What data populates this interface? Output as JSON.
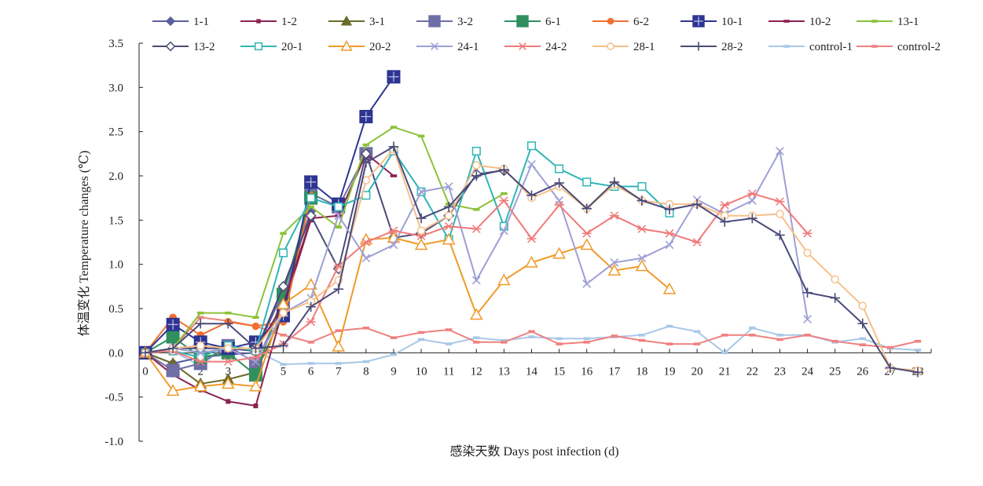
{
  "chart_data": {
    "type": "line",
    "title": "",
    "xlabel": "感染天数 Days post infection (d)",
    "ylabel": "体温变化 Temperature changes (℃)",
    "xlim": [
      0,
      28
    ],
    "ylim": [
      -1.0,
      3.5
    ],
    "yticks": [
      "-1.0",
      "-0.5",
      "0.0",
      "0.5",
      "1.0",
      "1.5",
      "2.0",
      "2.5",
      "3.0",
      "3.5"
    ],
    "xticks": [
      "0",
      "1",
      "2",
      "3",
      "4",
      "5",
      "6",
      "7",
      "8",
      "9",
      "10",
      "11",
      "12",
      "13",
      "14",
      "15",
      "16",
      "17",
      "18",
      "19",
      "20",
      "21",
      "22",
      "23",
      "24",
      "25",
      "26",
      "27",
      "28"
    ],
    "grid": false,
    "legend_position": "top",
    "series": [
      {
        "name": "1-1",
        "color": "#5a5f9c",
        "marker": "diamond",
        "x": [
          0,
          1,
          2,
          3,
          4,
          5,
          6
        ],
        "y": [
          0,
          -0.12,
          -0.05,
          -0.02,
          0.0,
          0.7,
          1.6
        ]
      },
      {
        "name": "1-2",
        "color": "#8b2252",
        "marker": "square-small",
        "x": [
          0,
          1,
          2,
          3,
          4,
          5,
          6
        ],
        "y": [
          0,
          -0.25,
          -0.42,
          -0.55,
          -0.6,
          0.5,
          1.5
        ]
      },
      {
        "name": "3-1",
        "color": "#6b6b2a",
        "marker": "triangle-filled",
        "x": [
          0,
          1,
          2,
          3,
          4,
          5,
          6
        ],
        "y": [
          0,
          -0.12,
          -0.35,
          -0.3,
          -0.22,
          0.45,
          1.78
        ]
      },
      {
        "name": "3-2",
        "color": "#6f6fa6",
        "marker": "square-large",
        "x": [
          0,
          1,
          2,
          3,
          4,
          5,
          6,
          7,
          8
        ],
        "y": [
          0,
          -0.2,
          -0.12,
          0.08,
          -0.12,
          0.55,
          1.8,
          1.65,
          2.25
        ]
      },
      {
        "name": "6-1",
        "color": "#2f8f5f",
        "marker": "square-large",
        "x": [
          0,
          1,
          2,
          3,
          4,
          5,
          6
        ],
        "y": [
          0,
          0.18,
          -0.05,
          0.0,
          -0.25,
          0.66,
          1.75
        ]
      },
      {
        "name": "6-2",
        "color": "#f07030",
        "marker": "circle-filled",
        "x": [
          0,
          1,
          2,
          3,
          4,
          5,
          6
        ],
        "y": [
          0,
          0.4,
          0.2,
          0.35,
          0.3,
          0.35,
          1.78
        ]
      },
      {
        "name": "10-1",
        "color": "#2d3592",
        "marker": "square-plus",
        "x": [
          0,
          1,
          2,
          3,
          4,
          5,
          6,
          7,
          8,
          9
        ],
        "y": [
          0,
          0.32,
          0.12,
          0.05,
          0.12,
          0.42,
          1.93,
          1.68,
          2.67,
          3.12
        ]
      },
      {
        "name": "10-2",
        "color": "#8b2252",
        "marker": "dash",
        "x": [
          0,
          1,
          2,
          3,
          4,
          5,
          6,
          7,
          8,
          9
        ],
        "y": [
          0,
          0.05,
          0.08,
          0.05,
          0.02,
          0.55,
          1.52,
          1.55,
          2.25,
          2.0
        ]
      },
      {
        "name": "13-1",
        "color": "#8cc23a",
        "marker": "dash",
        "x": [
          0,
          1,
          2,
          3,
          4,
          5,
          6,
          7,
          8,
          9,
          10,
          11,
          12,
          13
        ],
        "y": [
          0,
          0.05,
          0.45,
          0.45,
          0.4,
          1.35,
          1.65,
          1.42,
          2.35,
          2.55,
          2.45,
          1.68,
          1.62,
          1.8
        ]
      },
      {
        "name": "13-2",
        "color": "#4a4a7a",
        "marker": "diamond-open",
        "x": [
          0,
          1,
          2,
          3,
          4,
          5,
          6,
          7,
          8,
          9,
          10,
          11,
          12,
          13
        ],
        "y": [
          0,
          0.05,
          0.05,
          0.05,
          0.02,
          0.75,
          1.55,
          0.95,
          2.25,
          1.3,
          1.35,
          1.55,
          2.02,
          2.06
        ]
      },
      {
        "name": "20-1",
        "color": "#30b5b5",
        "marker": "square-open",
        "x": [
          0,
          1,
          2,
          3,
          4,
          5,
          6,
          7,
          8,
          9,
          10,
          11,
          12,
          13,
          14,
          15,
          16,
          17,
          18,
          19
        ],
        "y": [
          0,
          0.02,
          -0.05,
          0.08,
          0.02,
          1.13,
          1.75,
          1.65,
          1.78,
          2.28,
          1.82,
          1.28,
          2.28,
          1.43,
          2.34,
          2.08,
          1.93,
          1.88,
          1.88,
          1.58
        ]
      },
      {
        "name": "20-2",
        "color": "#f09a2a",
        "marker": "triangle-open",
        "x": [
          0,
          1,
          2,
          3,
          4,
          5,
          6,
          7,
          8,
          9,
          10,
          11,
          12,
          13,
          14,
          15,
          16,
          17,
          18,
          19
        ],
        "y": [
          0,
          -0.43,
          -0.38,
          -0.35,
          -0.38,
          0.55,
          0.77,
          0.07,
          1.28,
          1.3,
          1.22,
          1.28,
          0.43,
          0.82,
          1.02,
          1.12,
          1.22,
          0.93,
          0.98,
          0.72
        ]
      },
      {
        "name": "24-1",
        "color": "#9f9fd6",
        "marker": "x",
        "x": [
          0,
          1,
          2,
          3,
          4,
          5,
          6,
          7,
          8,
          9,
          10,
          11,
          12,
          13,
          14,
          15,
          16,
          17,
          18,
          19,
          20,
          21,
          22,
          23,
          24
        ],
        "y": [
          0,
          0.05,
          0.0,
          0.05,
          -0.1,
          0.45,
          0.62,
          1.55,
          1.07,
          1.22,
          1.82,
          1.88,
          0.82,
          1.38,
          2.13,
          1.72,
          0.78,
          1.02,
          1.07,
          1.22,
          1.73,
          1.57,
          1.72,
          2.28,
          0.38
        ]
      },
      {
        "name": "24-2",
        "color": "#f07a7a",
        "marker": "asterisk",
        "x": [
          0,
          1,
          2,
          3,
          4,
          5,
          6,
          7,
          8,
          9,
          10,
          11,
          12,
          13,
          14,
          15,
          16,
          17,
          18,
          19,
          20,
          21,
          22,
          23,
          24
        ],
        "y": [
          0,
          0.02,
          -0.1,
          -0.1,
          -0.05,
          0.1,
          0.35,
          0.98,
          1.25,
          1.38,
          1.32,
          1.43,
          1.4,
          1.72,
          1.29,
          1.67,
          1.35,
          1.55,
          1.4,
          1.35,
          1.25,
          1.67,
          1.8,
          1.71,
          1.35
        ]
      },
      {
        "name": "28-1",
        "color": "#f5c08a",
        "marker": "circle-open",
        "x": [
          0,
          1,
          2,
          3,
          4,
          5,
          6,
          7,
          8,
          9,
          10,
          11,
          12,
          13,
          14,
          15,
          16,
          17,
          18,
          19,
          20,
          21,
          22,
          23,
          24,
          25,
          26,
          27,
          28
        ],
        "y": [
          0,
          0.05,
          0.08,
          0.05,
          0.05,
          0.45,
          0.58,
          0.82,
          1.95,
          2.3,
          1.38,
          1.55,
          2.12,
          2.08,
          1.75,
          1.88,
          1.63,
          1.9,
          1.72,
          1.68,
          1.68,
          1.55,
          1.55,
          1.57,
          1.13,
          0.83,
          0.53,
          -0.17,
          -0.2
        ]
      },
      {
        "name": "28-2",
        "color": "#4a4a7a",
        "marker": "plus",
        "x": [
          0,
          1,
          2,
          3,
          4,
          5,
          6,
          7,
          8,
          9,
          10,
          11,
          12,
          13,
          14,
          15,
          16,
          17,
          18,
          19,
          20,
          21,
          22,
          23,
          24,
          25,
          26,
          27,
          28
        ],
        "y": [
          0,
          0.05,
          0.33,
          0.33,
          0.05,
          0.08,
          0.52,
          0.72,
          2.15,
          2.33,
          1.52,
          1.65,
          2.0,
          2.07,
          1.78,
          1.92,
          1.63,
          1.93,
          1.72,
          1.62,
          1.68,
          1.48,
          1.52,
          1.33,
          0.68,
          0.62,
          0.33,
          -0.17,
          -0.22
        ]
      },
      {
        "name": "control-1",
        "color": "#a8c8e8",
        "marker": "dash",
        "x": [
          0,
          1,
          2,
          3,
          4,
          5,
          6,
          7,
          8,
          9,
          10,
          11,
          12,
          13,
          14,
          15,
          16,
          17,
          18,
          19,
          20,
          21,
          22,
          23,
          24,
          25,
          26,
          27,
          28
        ],
        "y": [
          0,
          0.02,
          -0.15,
          0.1,
          0.02,
          -0.13,
          -0.12,
          -0.12,
          -0.1,
          -0.02,
          0.15,
          0.1,
          0.17,
          0.14,
          0.18,
          0.16,
          0.16,
          0.18,
          0.2,
          0.3,
          0.24,
          0.0,
          0.28,
          0.2,
          0.2,
          0.12,
          0.16,
          0.05,
          0.03
        ]
      },
      {
        "name": "control-2",
        "color": "#f08080",
        "marker": "dash",
        "x": [
          0,
          1,
          2,
          3,
          4,
          5,
          6,
          7,
          8,
          9,
          10,
          11,
          12,
          13,
          14,
          15,
          16,
          17,
          18,
          19,
          20,
          21,
          22,
          23,
          24,
          25,
          26,
          27,
          28
        ],
        "y": [
          0,
          0.05,
          0.4,
          0.36,
          0.3,
          0.2,
          0.12,
          0.25,
          0.28,
          0.17,
          0.23,
          0.26,
          0.12,
          0.12,
          0.24,
          0.1,
          0.12,
          0.19,
          0.14,
          0.1,
          0.1,
          0.2,
          0.2,
          0.15,
          0.2,
          0.13,
          0.09,
          0.06,
          0.13
        ]
      }
    ]
  }
}
